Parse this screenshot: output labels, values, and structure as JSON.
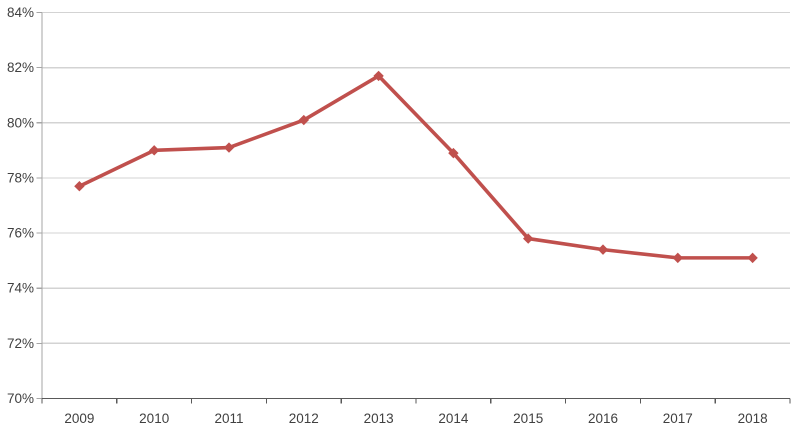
{
  "chart_data": {
    "type": "line",
    "title": "",
    "x_categories": [
      "2009",
      "2010",
      "2011",
      "2012",
      "2013",
      "2014",
      "2015",
      "2016",
      "2017",
      "2018"
    ],
    "values": [
      77.7,
      79.0,
      79.1,
      80.1,
      81.7,
      78.9,
      75.8,
      75.4,
      75.1,
      75.1
    ],
    "y_axis": {
      "min": 70,
      "max": 84,
      "step": 2,
      "tick_labels": [
        "70%",
        "72%",
        "74%",
        "76%",
        "78%",
        "80%",
        "82%",
        "84%"
      ]
    },
    "grid": "horizontal",
    "legend": "none",
    "marker": "diamond",
    "colors": {
      "series": "#C0504D",
      "gridline": "#D3D3D3",
      "y_axis_line": "#A6A6A6",
      "x_axis_line": "#595959",
      "tick_label": "#404040",
      "background": "#FFFFFF"
    }
  }
}
